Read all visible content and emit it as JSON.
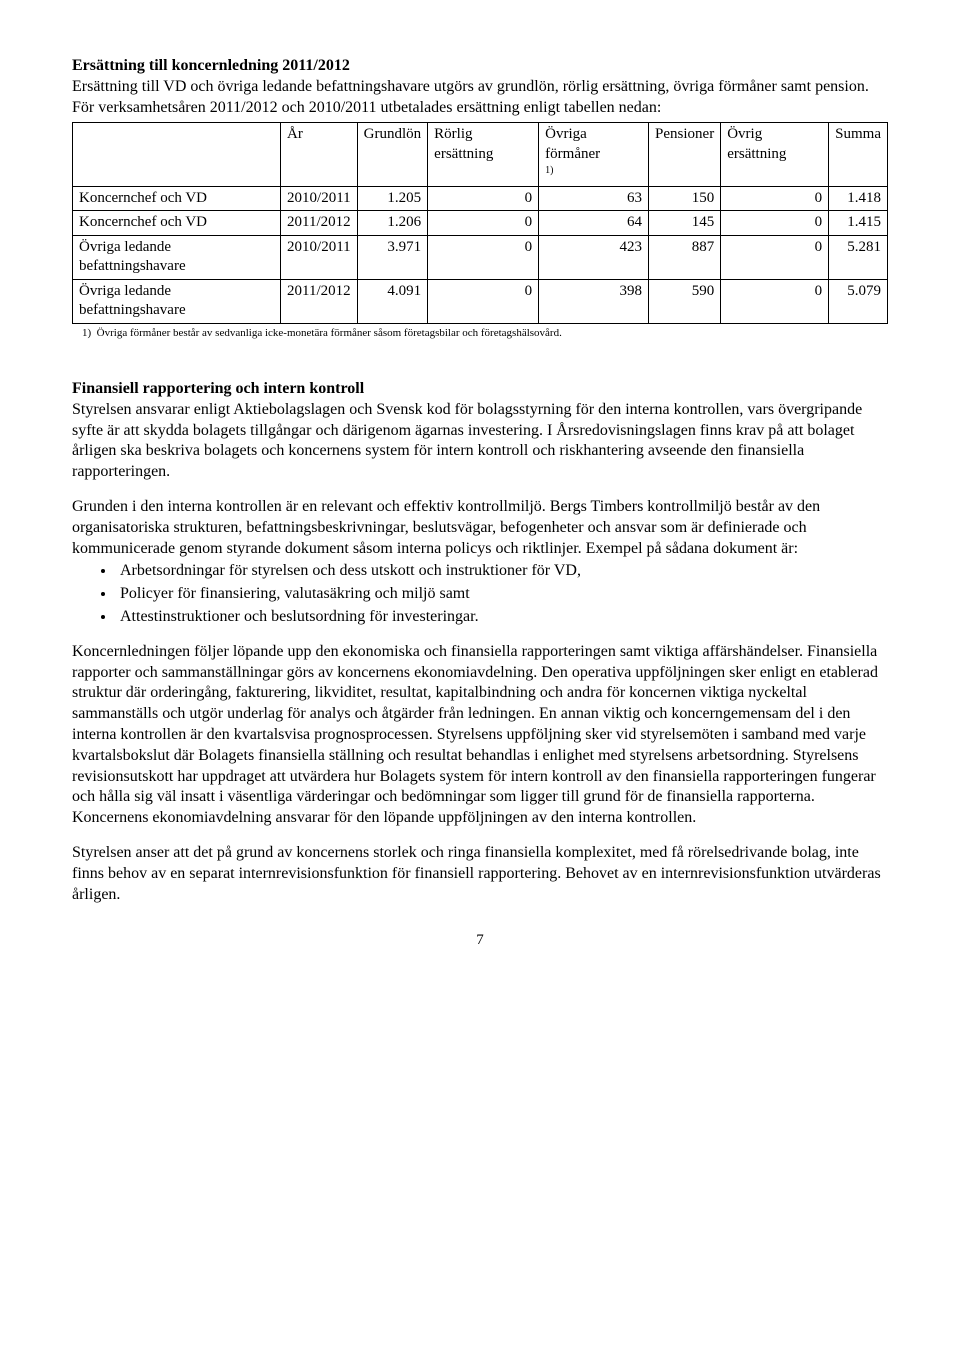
{
  "header": {
    "title": "Ersättning till koncernledning 2011/2012",
    "intro1": "Ersättning till VD och övriga ledande befattningshavare utgörs av grundlön, rörlig ersättning, övriga förmåner samt pension.",
    "intro2": "För verksamhetsåren 2011/2012 och 2010/2011 utbetalades ersättning enligt tabellen nedan:"
  },
  "table": {
    "columns": [
      "",
      "År",
      "Grundlön",
      "Rörlig ersättning",
      "Övriga förmåner",
      "Pensioner",
      "Övrig ersättning",
      "Summa"
    ],
    "header_sup": "1)",
    "rows": [
      {
        "label": "Koncernchef och VD",
        "year": "2010/2011",
        "grund": "1.205",
        "rorlig": "0",
        "form": "63",
        "pens": "150",
        "ovrig": "0",
        "sum": "1.418"
      },
      {
        "label": "Koncernchef och VD",
        "year": "2011/2012",
        "grund": "1.206",
        "rorlig": "0",
        "form": "64",
        "pens": "145",
        "ovrig": "0",
        "sum": "1.415"
      },
      {
        "label": "Övriga ledande befattningshavare",
        "year": "2010/2011",
        "grund": "3.971",
        "rorlig": "0",
        "form": "423",
        "pens": "887",
        "ovrig": "0",
        "sum": "5.281"
      },
      {
        "label": "Övriga ledande befattningshavare",
        "year": "2011/2012",
        "grund": "4.091",
        "rorlig": "0",
        "form": "398",
        "pens": "590",
        "ovrig": "0",
        "sum": "5.079"
      }
    ],
    "footnote_marker": "1)",
    "footnote_text": "Övriga förmåner  består av sedvanliga icke-monetära förmåner såsom företagsbilar och företagshälsovård."
  },
  "section2": {
    "title": "Finansiell rapportering och intern kontroll",
    "para1": "Styrelsen ansvarar enligt Aktiebolagslagen och Svensk kod för bolagsstyrning för den interna kontrollen, vars övergripande syfte är att skydda bolagets tillgångar och därigenom ägarnas investering. I Årsredovisningslagen finns krav på att bolaget årligen ska beskriva bolagets och koncernens system för intern kontroll och riskhantering avseende den finansiella rapporteringen.",
    "para2": "Grunden i den interna kontrollen är en relevant och effektiv kontrollmiljö. Bergs Timbers kontrollmiljö består av den organisatoriska strukturen, befattningsbeskrivningar, beslutsvägar, befogenheter och ansvar som är definierade och kommunicerade genom styrande dokument såsom interna policys och riktlinjer. Exempel på sådana dokument är:",
    "bullets": [
      "Arbetsordningar för styrelsen och dess utskott och instruktioner för VD,",
      "Policyer för finansiering, valutasäkring och miljö samt",
      "Attestinstruktioner och beslutsordning för investeringar."
    ],
    "para3": "Koncernledningen följer löpande upp den ekonomiska och finansiella rapporteringen samt viktiga affärshändelser. Finansiella rapporter och sammanställningar görs av koncernens ekonomiavdelning. Den operativa uppföljningen sker enligt en etablerad struktur där orderingång, fakturering, likviditet, resultat, kapitalbindning och andra för koncernen viktiga nyckeltal sammanställs och utgör underlag för analys och åtgärder från ledningen. En annan viktig och koncerngemensam del i den interna kontrollen är den kvartalsvisa prognosprocessen. Styrelsens uppföljning sker vid styrelsemöten i samband med varje kvartalsbokslut där Bolagets finansiella ställning och resultat behandlas i enlighet med styrelsens arbetsordning. Styrelsens revisionsutskott har uppdraget att utvärdera hur Bolagets system för intern kontroll av den finansiella rapporteringen fungerar och hålla sig väl insatt i väsentliga värderingar och bedömningar som ligger till grund för de finansiella rapporterna. Koncernens ekonomiavdelning ansvarar för den löpande uppföljningen av den interna kontrollen.",
    "para4": "Styrelsen anser att det på grund av koncernens storlek och ringa finansiella komplexitet, med få rörelsedrivande bolag, inte finns behov av en separat internrevisionsfunktion för finansiell rapportering. Behovet av en internrevisionsfunktion utvärderas årligen."
  },
  "page_number": "7"
}
